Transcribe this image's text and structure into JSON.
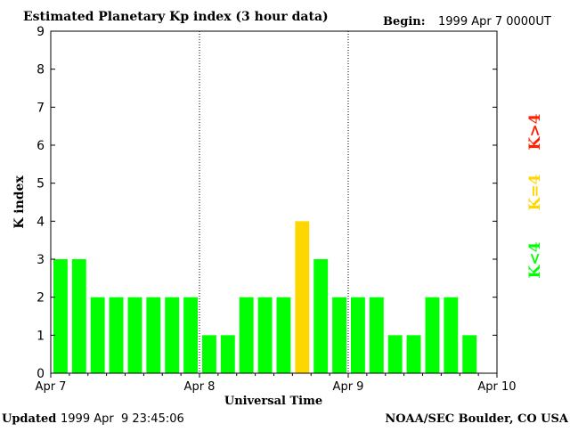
{
  "header": {
    "title": "Estimated Planetary Kp index (3 hour data)",
    "begin_label": "Begin:",
    "begin_value": "1999 Apr 7 0000UT"
  },
  "footer": {
    "updated_label": "Updated",
    "updated_value": "1999 Apr  9 23:45:06",
    "source": "NOAA/SEC Boulder, CO USA"
  },
  "legend": {
    "low": "K<4",
    "mid": "K=4",
    "high": "K>4"
  },
  "colors": {
    "low": "#00ff00",
    "mid": "#ffd700",
    "high": "#ff2000",
    "axis": "#000000"
  },
  "chart_data": {
    "type": "bar",
    "title": "Estimated Planetary Kp index (3 hour data)",
    "xlabel": "Universal Time",
    "ylabel": "K index",
    "ylim": [
      0,
      9
    ],
    "yticks": [
      0,
      1,
      2,
      3,
      4,
      5,
      6,
      7,
      8,
      9
    ],
    "xticks": [
      "Apr 7",
      "Apr 8",
      "Apr 9",
      "Apr 10"
    ],
    "day_separators": [
      "Apr 8",
      "Apr 9"
    ],
    "slots_per_day": 8,
    "total_slots": 24,
    "values": [
      3,
      3,
      2,
      2,
      2,
      2,
      2,
      2,
      1,
      1,
      2,
      2,
      2,
      4,
      3,
      2,
      2,
      2,
      1,
      1,
      2,
      2,
      1
    ]
  }
}
